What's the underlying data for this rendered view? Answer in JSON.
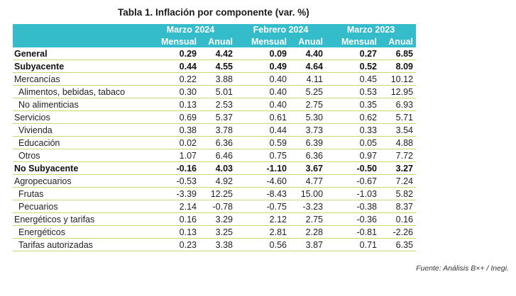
{
  "title": "Tabla 1. Inflación por componente (var. %)",
  "periods": [
    "Marzo 2024",
    "Febrero 2024",
    "Marzo 2023"
  ],
  "subheaders": {
    "mensual": "Mensual",
    "anual": "Anual"
  },
  "rows": [
    {
      "label": "General",
      "values": [
        "0.29",
        "4.42",
        "0.09",
        "4.40",
        "0.27",
        "6.85"
      ]
    },
    {
      "label": "Subyacente",
      "values": [
        "0.44",
        "4.55",
        "0.49",
        "4.64",
        "0.52",
        "8.09"
      ]
    },
    {
      "label": "Mercancías",
      "values": [
        "0.22",
        "3.88",
        "0.40",
        "4.11",
        "0.45",
        "10.12"
      ]
    },
    {
      "label": "Alimentos, bebidas, tabaco",
      "values": [
        "0.30",
        "5.01",
        "0.40",
        "5.25",
        "0.53",
        "12.95"
      ]
    },
    {
      "label": "No alimenticias",
      "values": [
        "0.13",
        "2.53",
        "0.40",
        "2.75",
        "0.35",
        "6.93"
      ]
    },
    {
      "label": "Servicios",
      "values": [
        "0.69",
        "5.37",
        "0.61",
        "5.30",
        "0.62",
        "5.71"
      ]
    },
    {
      "label": "Vivienda",
      "values": [
        "0.38",
        "3.78",
        "0.44",
        "3.73",
        "0.33",
        "3.54"
      ]
    },
    {
      "label": "Educación",
      "values": [
        "0.02",
        "6.36",
        "0.59",
        "6.39",
        "0.05",
        "4.88"
      ]
    },
    {
      "label": "Otros",
      "values": [
        "1.07",
        "6.46",
        "0.75",
        "6.36",
        "0.97",
        "7.72"
      ]
    },
    {
      "label": "No Subyacente",
      "values": [
        "-0.16",
        "4.03",
        "-1.10",
        "3.67",
        "-0.50",
        "3.27"
      ]
    },
    {
      "label": "Agropecuarios",
      "values": [
        "-0.53",
        "4.92",
        "-4.60",
        "4.77",
        "-0.67",
        "7.24"
      ]
    },
    {
      "label": "Frutas",
      "values": [
        "-3.39",
        "12.25",
        "-8.43",
        "15.00",
        "-1.03",
        "5.82"
      ]
    },
    {
      "label": "Pecuarios",
      "values": [
        "2.14",
        "-0.78",
        "-0.75",
        "-3.23",
        "-0.38",
        "8.37"
      ]
    },
    {
      "label": "Energéticos y tarifas",
      "values": [
        "0.16",
        "3.29",
        "2.12",
        "2.75",
        "-0.36",
        "0.16"
      ]
    },
    {
      "label": "Energéticos",
      "values": [
        "0.13",
        "3.25",
        "2.81",
        "2.28",
        "-0.81",
        "-2.26"
      ]
    },
    {
      "label": "Tarifas autorizadas",
      "values": [
        "0.23",
        "3.38",
        "0.56",
        "3.87",
        "0.71",
        "6.35"
      ]
    }
  ],
  "source": "Fuente: Análisis B×+ /  Inegi.",
  "colors": {
    "header_bg": "#34bccb",
    "header_text": "#ffffff",
    "row_divider": "#c7d66d"
  }
}
